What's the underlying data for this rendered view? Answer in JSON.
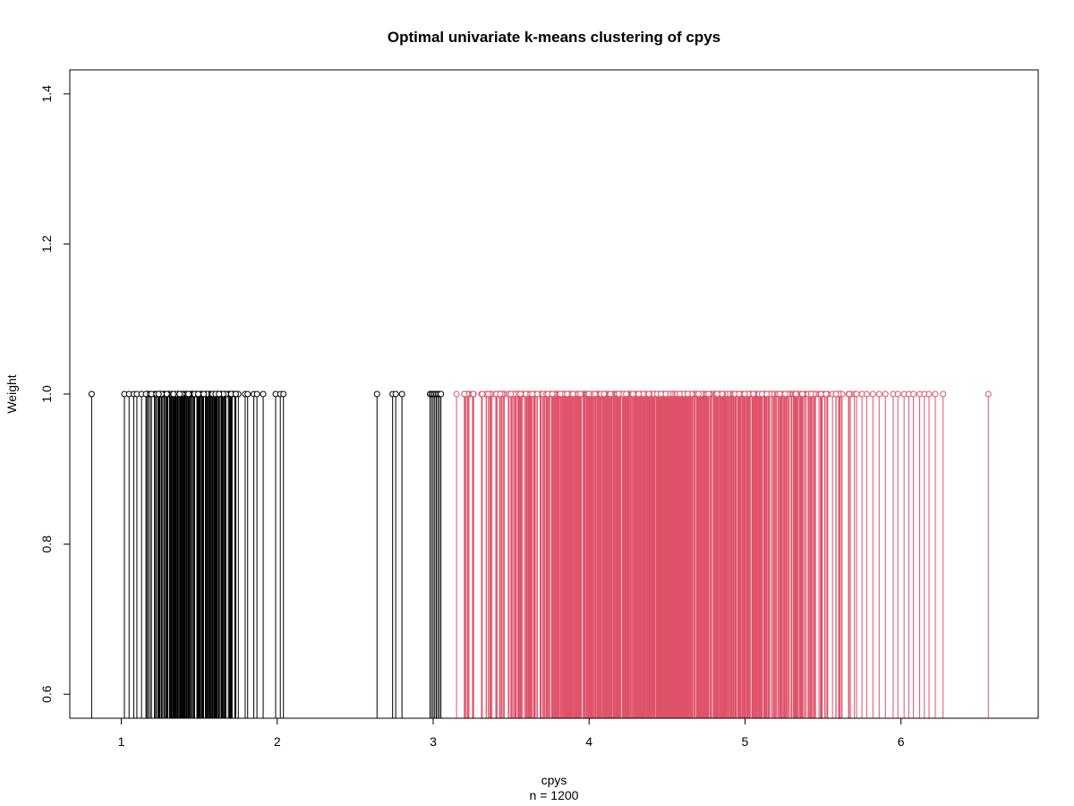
{
  "chart_data": {
    "type": "bar",
    "title": "Optimal univariate k-means clustering of cpys",
    "xlabel": "cpys",
    "sublabel": "n = 1200",
    "ylabel": "Weight",
    "xlim": [
      0.67,
      6.88
    ],
    "ylim": [
      0.568,
      1.432
    ],
    "x_ticks": [
      1,
      2,
      3,
      4,
      5,
      6
    ],
    "y_ticks": [
      0.6,
      0.8,
      1.0,
      1.2,
      1.4
    ],
    "x_tick_labels": [
      "1",
      "2",
      "3",
      "4",
      "5",
      "6"
    ],
    "y_tick_labels": [
      "0.6",
      "0.8",
      "1.0",
      "1.2",
      "1.4"
    ],
    "grid": false,
    "series": [
      {
        "color": "#000000",
        "count": 205,
        "weight": 1.0,
        "range": [
          0.81,
          3.05
        ]
      },
      {
        "color": "#DF536B",
        "count": 995,
        "weight": 1.0,
        "range": [
          3.15,
          6.56
        ]
      }
    ]
  }
}
